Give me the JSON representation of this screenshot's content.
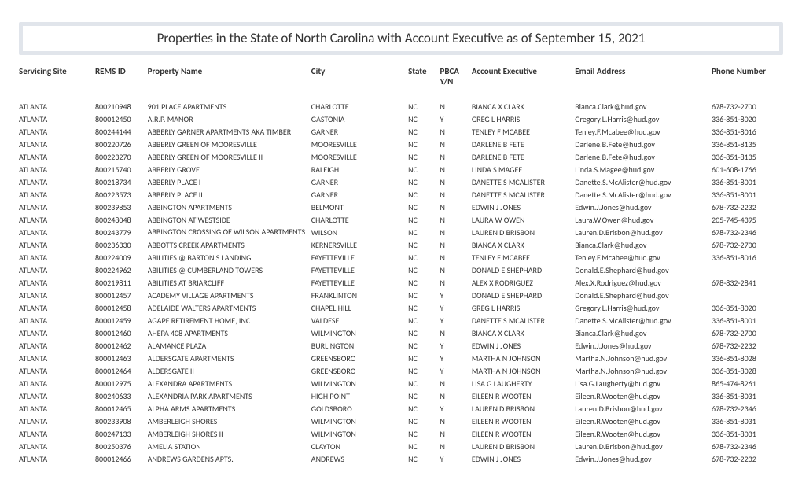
{
  "title": "Properties in the State of North Carolina with Account Executive as of September 15, 2021",
  "columns": {
    "site": "Servicing Site",
    "rems": "REMS ID",
    "prop": "Property Name",
    "city": "City",
    "state": "State",
    "pbca": "PBCA Y/N",
    "ae": "Account Executive",
    "email": "Email Address",
    "phone": "Phone Number"
  },
  "rows": [
    {
      "site": "ATLANTA",
      "rems": "800210948",
      "prop": "901 PLACE APARTMENTS",
      "city": "CHARLOTTE",
      "state": "NC",
      "pbca": "N",
      "ae": "BIANCA X CLARK",
      "email": "Bianca.Clark@hud.gov",
      "phone": "678-732-2700"
    },
    {
      "site": "ATLANTA",
      "rems": "800012450",
      "prop": "A.R.P. MANOR",
      "city": "GASTONIA",
      "state": "NC",
      "pbca": "Y",
      "ae": "GREG L HARRIS",
      "email": "Gregory.L.Harris@hud.gov",
      "phone": "336-851-8020"
    },
    {
      "site": "ATLANTA",
      "rems": "800244144",
      "prop": "ABBERLY GARNER APARTMENTS AKA TIMBER",
      "city": "GARNER",
      "state": "NC",
      "pbca": "N",
      "ae": "TENLEY F MCABEE",
      "email": "Tenley.F.Mcabee@hud.gov",
      "phone": "336-851-8016"
    },
    {
      "site": "ATLANTA",
      "rems": "800220726",
      "prop": "ABBERLY GREEN OF MOORESVILLE",
      "city": "MOORESVILLE",
      "state": "NC",
      "pbca": "N",
      "ae": "DARLENE B FETE",
      "email": "Darlene.B.Fete@hud.gov",
      "phone": "336-851-8135"
    },
    {
      "site": "ATLANTA",
      "rems": "800223270",
      "prop": "ABBERLY GREEN OF MOORESVILLE II",
      "city": "MOORESVILLE",
      "state": "NC",
      "pbca": "N",
      "ae": "DARLENE B FETE",
      "email": "Darlene.B.Fete@hud.gov",
      "phone": "336-851-8135"
    },
    {
      "site": "ATLANTA",
      "rems": "800215740",
      "prop": "ABBERLY GROVE",
      "city": "RALEIGH",
      "state": "NC",
      "pbca": "N",
      "ae": "LINDA S MAGEE",
      "email": "Linda.S.Magee@hud.gov",
      "phone": "601-608-1766"
    },
    {
      "site": "ATLANTA",
      "rems": "800218734",
      "prop": "ABBERLY PLACE I",
      "city": "GARNER",
      "state": "NC",
      "pbca": "N",
      "ae": "DANETTE S MCALISTER",
      "email": "Danette.S.McAlister@hud.gov",
      "phone": "336-851-8001"
    },
    {
      "site": "ATLANTA",
      "rems": "800223573",
      "prop": "ABBERLY PLACE II",
      "city": "GARNER",
      "state": "NC",
      "pbca": "N",
      "ae": "DANETTE S MCALISTER",
      "email": "Danette.S.McAlister@hud.gov",
      "phone": "336-851-8001"
    },
    {
      "site": "ATLANTA",
      "rems": "800239853",
      "prop": "ABBINGTON APARTMENTS",
      "city": "BELMONT",
      "state": "NC",
      "pbca": "N",
      "ae": "EDWIN J JONES",
      "email": "Edwin.J.Jones@hud.gov",
      "phone": "678-732-2232"
    },
    {
      "site": "ATLANTA",
      "rems": "800248048",
      "prop": "ABBINGTON AT WESTSIDE",
      "city": "CHARLOTTE",
      "state": "NC",
      "pbca": "N",
      "ae": "LAURA W OWEN",
      "email": "Laura.W.Owen@hud.gov",
      "phone": "205-745-4395"
    },
    {
      "site": "ATLANTA",
      "rems": "800243779",
      "prop": "ABBINGTON CROSSING OF WILSON APARTMENTS",
      "city": "WILSON",
      "state": "NC",
      "pbca": "N",
      "ae": "LAUREN D BRISBON",
      "email": "Lauren.D.Brisbon@hud.gov",
      "phone": "678-732-2346",
      "wrap": true
    },
    {
      "site": "ATLANTA",
      "rems": "800236330",
      "prop": "ABBOTTS CREEK APARTMENTS",
      "city": "KERNERSVILLE",
      "state": "NC",
      "pbca": "N",
      "ae": "BIANCA X CLARK",
      "email": "Bianca.Clark@hud.gov",
      "phone": "678-732-2700"
    },
    {
      "site": "ATLANTA",
      "rems": "800224009",
      "prop": "ABILITIES @ BARTON'S LANDING",
      "city": "FAYETTEVILLE",
      "state": "NC",
      "pbca": "N",
      "ae": "TENLEY F MCABEE",
      "email": "Tenley.F.Mcabee@hud.gov",
      "phone": "336-851-8016"
    },
    {
      "site": "ATLANTA",
      "rems": "800224962",
      "prop": "ABILITIES @ CUMBERLAND TOWERS",
      "city": "FAYETTEVILLE",
      "state": "NC",
      "pbca": "N",
      "ae": "DONALD E SHEPHARD",
      "email": "Donald.E.Shephard@hud.gov",
      "phone": ""
    },
    {
      "site": "ATLANTA",
      "rems": "800219811",
      "prop": "ABILITIES AT BRIARCLIFF",
      "city": "FAYETTEVILLE",
      "state": "NC",
      "pbca": "N",
      "ae": "ALEX X RODRIGUEZ",
      "email": "Alex.X.Rodriguez@hud.gov",
      "phone": "678-832-2841"
    },
    {
      "site": "ATLANTA",
      "rems": "800012457",
      "prop": "ACADEMY VILLAGE APARTMENTS",
      "city": "FRANKLINTON",
      "state": "NC",
      "pbca": "Y",
      "ae": "DONALD E SHEPHARD",
      "email": "Donald.E.Shephard@hud.gov",
      "phone": ""
    },
    {
      "site": "ATLANTA",
      "rems": "800012458",
      "prop": "ADELAIDE WALTERS APARTMENTS",
      "city": "CHAPEL HILL",
      "state": "NC",
      "pbca": "Y",
      "ae": "GREG L HARRIS",
      "email": "Gregory.L.Harris@hud.gov",
      "phone": "336-851-8020"
    },
    {
      "site": "ATLANTA",
      "rems": "800012459",
      "prop": "AGAPE RETIREMENT HOME, INC",
      "city": "VALDESE",
      "state": "NC",
      "pbca": "Y",
      "ae": "DANETTE S MCALISTER",
      "email": "Danette.S.McAlister@hud.gov",
      "phone": "336-851-8001"
    },
    {
      "site": "ATLANTA",
      "rems": "800012460",
      "prop": "AHEPA  408 APARTMENTS",
      "city": "WILMINGTON",
      "state": "NC",
      "pbca": "N",
      "ae": "BIANCA X CLARK",
      "email": "Bianca.Clark@hud.gov",
      "phone": "678-732-2700"
    },
    {
      "site": "ATLANTA",
      "rems": "800012462",
      "prop": "ALAMANCE PLAZA",
      "city": "BURLINGTON",
      "state": "NC",
      "pbca": "Y",
      "ae": "EDWIN J JONES",
      "email": "Edwin.J.Jones@hud.gov",
      "phone": "678-732-2232"
    },
    {
      "site": "ATLANTA",
      "rems": "800012463",
      "prop": "ALDERSGATE APARTMENTS",
      "city": "GREENSBORO",
      "state": "NC",
      "pbca": "Y",
      "ae": "MARTHA N JOHNSON",
      "email": "Martha.N.Johnson@hud.gov",
      "phone": "336-851-8028"
    },
    {
      "site": "ATLANTA",
      "rems": "800012464",
      "prop": "ALDERSGATE II",
      "city": "GREENSBORO",
      "state": "NC",
      "pbca": "Y",
      "ae": "MARTHA N JOHNSON",
      "email": "Martha.N.Johnson@hud.gov",
      "phone": "336-851-8028"
    },
    {
      "site": "ATLANTA",
      "rems": "800012975",
      "prop": "ALEXANDRA APARTMENTS",
      "city": "WILMINGTON",
      "state": "NC",
      "pbca": "N",
      "ae": "LISA G LAUGHERTY",
      "email": "Lisa.G.Laugherty@hud.gov",
      "phone": "865-474-8261"
    },
    {
      "site": "ATLANTA",
      "rems": "800240633",
      "prop": "ALEXANDRIA PARK APARTMENTS",
      "city": "HIGH POINT",
      "state": "NC",
      "pbca": "N",
      "ae": "EILEEN R WOOTEN",
      "email": "Eileen.R.Wooten@hud.gov",
      "phone": "336-851-8031"
    },
    {
      "site": "ATLANTA",
      "rems": "800012465",
      "prop": "ALPHA ARMS APARTMENTS",
      "city": "GOLDSBORO",
      "state": "NC",
      "pbca": "Y",
      "ae": "LAUREN D BRISBON",
      "email": "Lauren.D.Brisbon@hud.gov",
      "phone": "678-732-2346"
    },
    {
      "site": "ATLANTA",
      "rems": "800233908",
      "prop": "AMBERLEIGH SHORES",
      "city": "WILMINGTON",
      "state": "NC",
      "pbca": "N",
      "ae": "EILEEN R WOOTEN",
      "email": "Eileen.R.Wooten@hud.gov",
      "phone": "336-851-8031"
    },
    {
      "site": "ATLANTA",
      "rems": "800247133",
      "prop": "AMBERLEIGH SHORES II",
      "city": "WILMINGTON",
      "state": "NC",
      "pbca": "N",
      "ae": "EILEEN R WOOTEN",
      "email": "Eileen.R.Wooten@hud.gov",
      "phone": "336-851-8031"
    },
    {
      "site": "ATLANTA",
      "rems": "800250376",
      "prop": "AMELIA STATION",
      "city": "CLAYTON",
      "state": "NC",
      "pbca": "N",
      "ae": "LAUREN D BRISBON",
      "email": "Lauren.D.Brisbon@hud.gov",
      "phone": "678-732-2346"
    },
    {
      "site": "ATLANTA",
      "rems": "800012466",
      "prop": "ANDREWS GARDENS APTS.",
      "city": "ANDREWS",
      "state": "NC",
      "pbca": "Y",
      "ae": "EDWIN J JONES",
      "email": "Edwin.J.Jones@hud.gov",
      "phone": "678-732-2232"
    }
  ],
  "style": {
    "title_border_color": "#e1e5eb",
    "text_color": "#333333",
    "background_color": "#ffffff",
    "title_font_size": 17,
    "header_font_size": 11,
    "body_font_size": 10
  }
}
